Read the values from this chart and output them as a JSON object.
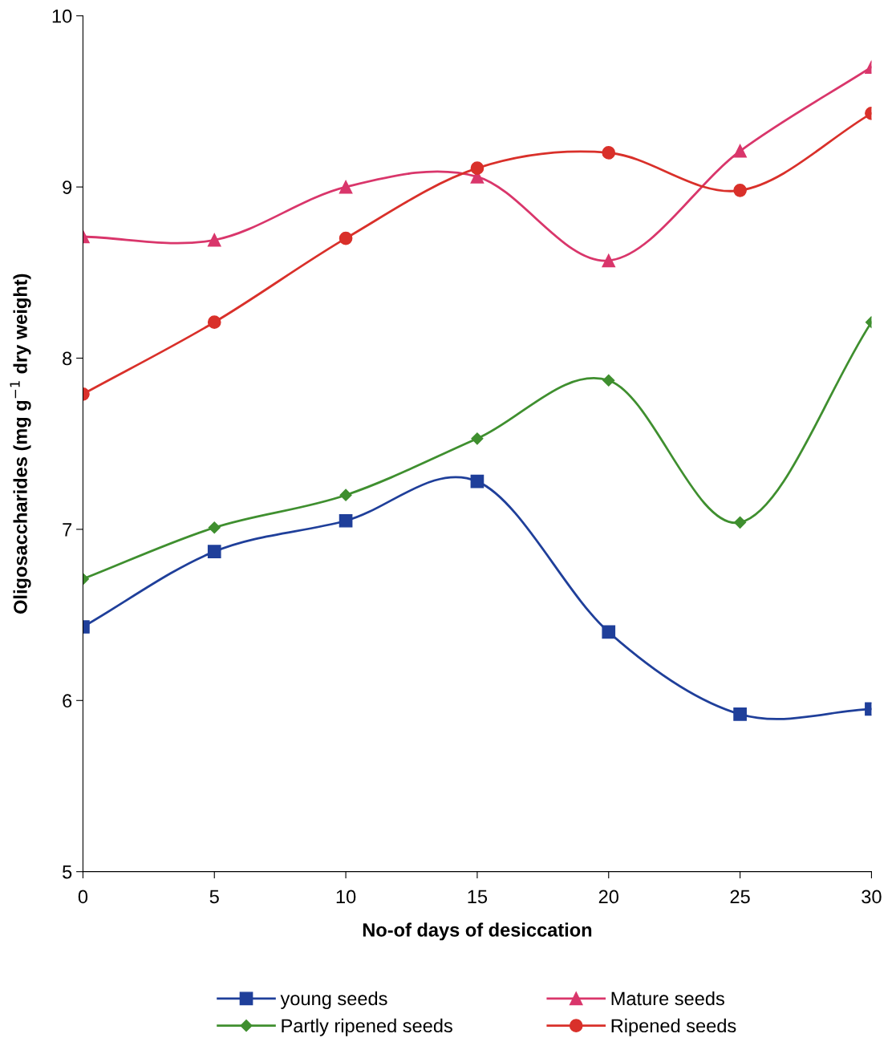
{
  "chart_data": {
    "type": "line",
    "xlabel": "No-of days of desiccation",
    "ylabel": "Oligosaccharides (mg g$^{−1}$ dry weight)",
    "x": [
      0,
      5,
      10,
      15,
      20,
      25,
      30
    ],
    "series": [
      {
        "name": "young seeds",
        "color": "#1f3f9a",
        "marker": "square",
        "values": [
          6.43,
          6.87,
          7.05,
          7.28,
          6.4,
          5.92,
          5.95
        ]
      },
      {
        "name": "Mature seeds",
        "color": "#d9366b",
        "marker": "triangle",
        "values": [
          8.71,
          8.69,
          9.0,
          9.06,
          8.57,
          9.21,
          9.7
        ]
      },
      {
        "name": "Partly ripened seeds",
        "color": "#3f8f2f",
        "marker": "diamond",
        "values": [
          6.71,
          7.01,
          7.2,
          7.53,
          7.87,
          7.04,
          8.21
        ]
      },
      {
        "name": "Ripened seeds",
        "color": "#d9302a",
        "marker": "circle",
        "values": [
          7.79,
          8.21,
          8.7,
          9.11,
          9.2,
          8.98,
          9.43
        ]
      }
    ],
    "xlim": [
      0,
      30
    ],
    "xticks": [
      0,
      5,
      10,
      15,
      20,
      25,
      30
    ],
    "ylim": [
      5,
      10
    ],
    "yticks": [
      5,
      6,
      7,
      8,
      9,
      10
    ],
    "grid": false,
    "legend": "bottom",
    "line_style": "solid"
  }
}
